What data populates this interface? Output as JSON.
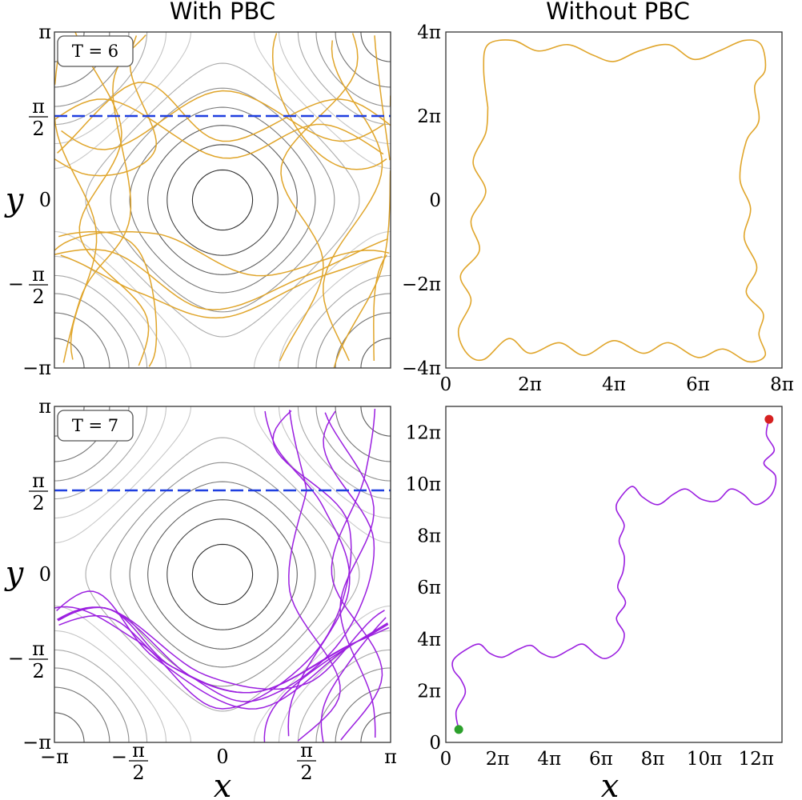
{
  "figure": {
    "col_titles": [
      "With PBC",
      "Without PBC"
    ],
    "colors": {
      "orbit_T6": "#e0a52a",
      "orbit_T7": "#9b1fe0",
      "dashed_line": "#1f3fe0",
      "start_marker": "#2ca02c",
      "end_marker": "#d62020",
      "contour_dark": "#222222",
      "contour_light": "#d8d8d8"
    }
  },
  "chart_data": [
    {
      "id": "T6_pbc",
      "type": "line",
      "title": "With PBC",
      "annotation": "T = 6",
      "xlabel": "",
      "ylabel": "y",
      "xlim": [
        -3.1416,
        3.1416
      ],
      "ylim": [
        -3.1416,
        3.1416
      ],
      "yticks": [
        "π",
        "π/2",
        "0",
        "−π/2",
        "−π"
      ],
      "xticks": [],
      "background": "contours of cos x + cos y",
      "hline_y": 1.5708,
      "series": [
        {
          "name": "orbit T=6 (wrapped)",
          "color": "#e0a52a",
          "source": "T6_nopbc"
        }
      ]
    },
    {
      "id": "T6_nopbc",
      "type": "line",
      "title": "Without PBC",
      "xlabel": "",
      "ylabel": "",
      "xlim": [
        0,
        25.13
      ],
      "ylim": [
        -12.57,
        12.57
      ],
      "xticks": [
        "0",
        "2π",
        "4π",
        "6π",
        "8π"
      ],
      "yticks": [
        "4π",
        "2π",
        "0",
        "−2π",
        "−4π"
      ],
      "series": [
        {
          "name": "orbit T=6",
          "color": "#e0a52a",
          "path_in_pi": [
            [
              1.0,
              2.2
            ],
            [
              0.9,
              3.1
            ],
            [
              1.0,
              3.7
            ],
            [
              1.6,
              3.8
            ],
            [
              2.2,
              3.55
            ],
            [
              2.9,
              3.7
            ],
            [
              3.5,
              3.45
            ],
            [
              4.0,
              3.3
            ],
            [
              4.6,
              3.55
            ],
            [
              5.3,
              3.7
            ],
            [
              5.9,
              3.35
            ],
            [
              6.5,
              3.55
            ],
            [
              7.1,
              3.8
            ],
            [
              7.5,
              3.7
            ],
            [
              7.6,
              3.1
            ],
            [
              7.35,
              2.7
            ],
            [
              7.45,
              1.9
            ],
            [
              7.15,
              1.4
            ],
            [
              7.0,
              0.5
            ],
            [
              7.25,
              -0.2
            ],
            [
              7.1,
              -0.9
            ],
            [
              7.4,
              -1.6
            ],
            [
              7.15,
              -2.2
            ],
            [
              7.55,
              -2.7
            ],
            [
              7.45,
              -3.2
            ],
            [
              7.6,
              -3.7
            ],
            [
              7.2,
              -3.85
            ],
            [
              6.6,
              -3.55
            ],
            [
              6.0,
              -3.75
            ],
            [
              5.3,
              -3.4
            ],
            [
              4.7,
              -3.65
            ],
            [
              4.0,
              -3.35
            ],
            [
              3.3,
              -3.7
            ],
            [
              2.7,
              -3.4
            ],
            [
              2.0,
              -3.65
            ],
            [
              1.5,
              -3.3
            ],
            [
              0.9,
              -3.8
            ],
            [
              0.5,
              -3.65
            ],
            [
              0.3,
              -3.1
            ],
            [
              0.6,
              -2.4
            ],
            [
              0.35,
              -1.8
            ],
            [
              0.8,
              -1.2
            ],
            [
              0.6,
              -0.5
            ],
            [
              0.95,
              0.2
            ],
            [
              0.65,
              0.9
            ],
            [
              0.95,
              1.6
            ],
            [
              1.0,
              2.2
            ]
          ]
        }
      ]
    },
    {
      "id": "T7_pbc",
      "type": "line",
      "annotation": "T = 7",
      "xlabel": "x",
      "ylabel": "y",
      "xlim": [
        -3.1416,
        3.1416
      ],
      "ylim": [
        -3.1416,
        3.1416
      ],
      "xticks": [
        "−π",
        "−π/2",
        "0",
        "π/2",
        "π"
      ],
      "yticks": [
        "π",
        "π/2",
        "0",
        "−π/2",
        "−π"
      ],
      "background": "contours of cos x + cos y",
      "hline_y": 1.5708,
      "series": [
        {
          "name": "orbit T=7 (wrapped)",
          "color": "#9b1fe0",
          "source": "T7_nopbc"
        }
      ]
    },
    {
      "id": "T7_nopbc",
      "type": "line",
      "xlabel": "x",
      "ylabel": "",
      "xlim": [
        0,
        40.84
      ],
      "ylim": [
        0,
        40.84
      ],
      "xticks": [
        "0",
        "2π",
        "4π",
        "6π",
        "8π",
        "10π",
        "12π"
      ],
      "yticks": [
        "12π",
        "10π",
        "8π",
        "6π",
        "4π",
        "2π",
        "0"
      ],
      "start_point_in_pi": [
        0.5,
        0.5
      ],
      "end_point_in_pi": [
        12.5,
        12.5
      ],
      "series": [
        {
          "name": "orbit T=7",
          "color": "#9b1fe0",
          "path_in_pi": [
            [
              0.5,
              0.5
            ],
            [
              0.4,
              1.2
            ],
            [
              0.75,
              1.9
            ],
            [
              0.6,
              2.4
            ],
            [
              0.3,
              2.8
            ],
            [
              0.3,
              3.2
            ],
            [
              0.8,
              3.6
            ],
            [
              1.3,
              3.8
            ],
            [
              1.7,
              3.45
            ],
            [
              2.2,
              3.3
            ],
            [
              2.8,
              3.6
            ],
            [
              3.3,
              3.75
            ],
            [
              3.7,
              3.45
            ],
            [
              4.2,
              3.3
            ],
            [
              4.8,
              3.6
            ],
            [
              5.3,
              3.8
            ],
            [
              5.8,
              3.4
            ],
            [
              6.2,
              3.25
            ],
            [
              6.7,
              3.6
            ],
            [
              6.9,
              4.2
            ],
            [
              6.6,
              4.8
            ],
            [
              6.95,
              5.4
            ],
            [
              6.65,
              6.0
            ],
            [
              6.85,
              6.6
            ],
            [
              6.9,
              7.2
            ],
            [
              6.7,
              7.8
            ],
            [
              6.9,
              8.4
            ],
            [
              6.6,
              9.0
            ],
            [
              6.7,
              9.4
            ],
            [
              7.2,
              9.9
            ],
            [
              7.6,
              9.5
            ],
            [
              8.2,
              9.2
            ],
            [
              8.8,
              9.6
            ],
            [
              9.3,
              9.8
            ],
            [
              9.9,
              9.4
            ],
            [
              10.5,
              9.35
            ],
            [
              11.0,
              9.8
            ],
            [
              11.5,
              9.6
            ],
            [
              12.0,
              9.2
            ],
            [
              12.6,
              9.6
            ],
            [
              12.75,
              10.3
            ],
            [
              12.3,
              10.8
            ],
            [
              12.7,
              11.3
            ],
            [
              12.4,
              11.9
            ],
            [
              12.5,
              12.5
            ]
          ]
        }
      ]
    }
  ]
}
